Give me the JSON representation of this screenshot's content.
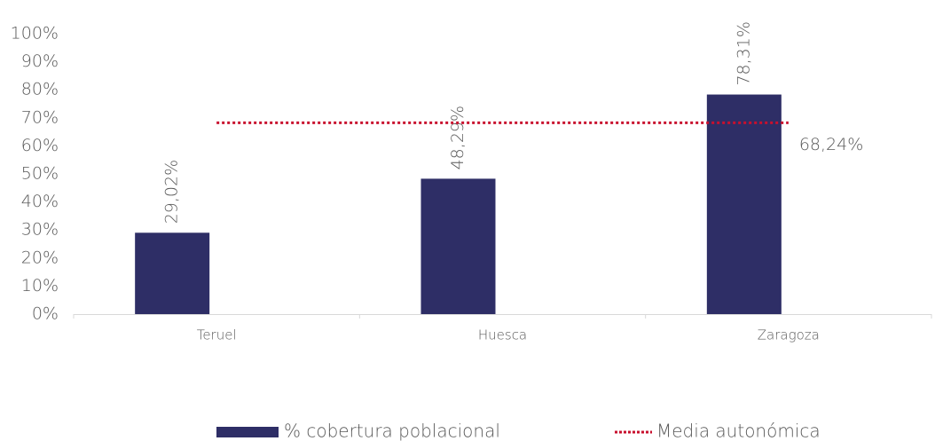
{
  "chart_data": {
    "type": "bar",
    "categories": [
      "Teruel",
      "Huesca",
      "Zaragoza"
    ],
    "series": [
      {
        "name": "% cobertura poblacional",
        "color": "#2e2e66",
        "values": [
          29.02,
          48.29,
          78.31
        ],
        "value_labels": [
          "29,02%",
          "48,29%",
          "78,31%"
        ]
      }
    ],
    "reference_line": {
      "name": "Media autonómica",
      "color": "#c8102e",
      "value": 68.24,
      "label": "68,24%"
    },
    "ylim": [
      0,
      100
    ],
    "yticks": [
      {
        "value": 0,
        "label": "0%"
      },
      {
        "value": 10,
        "label": "10%"
      },
      {
        "value": 20,
        "label": "20%"
      },
      {
        "value": 30,
        "label": "30%"
      },
      {
        "value": 40,
        "label": "40%"
      },
      {
        "value": 50,
        "label": "50%"
      },
      {
        "value": 60,
        "label": "60%"
      },
      {
        "value": 70,
        "label": "70%"
      },
      {
        "value": 80,
        "label": "80%"
      },
      {
        "value": 90,
        "label": "90%"
      },
      {
        "value": 100,
        "label": "100%"
      }
    ],
    "legend": "bottom"
  }
}
